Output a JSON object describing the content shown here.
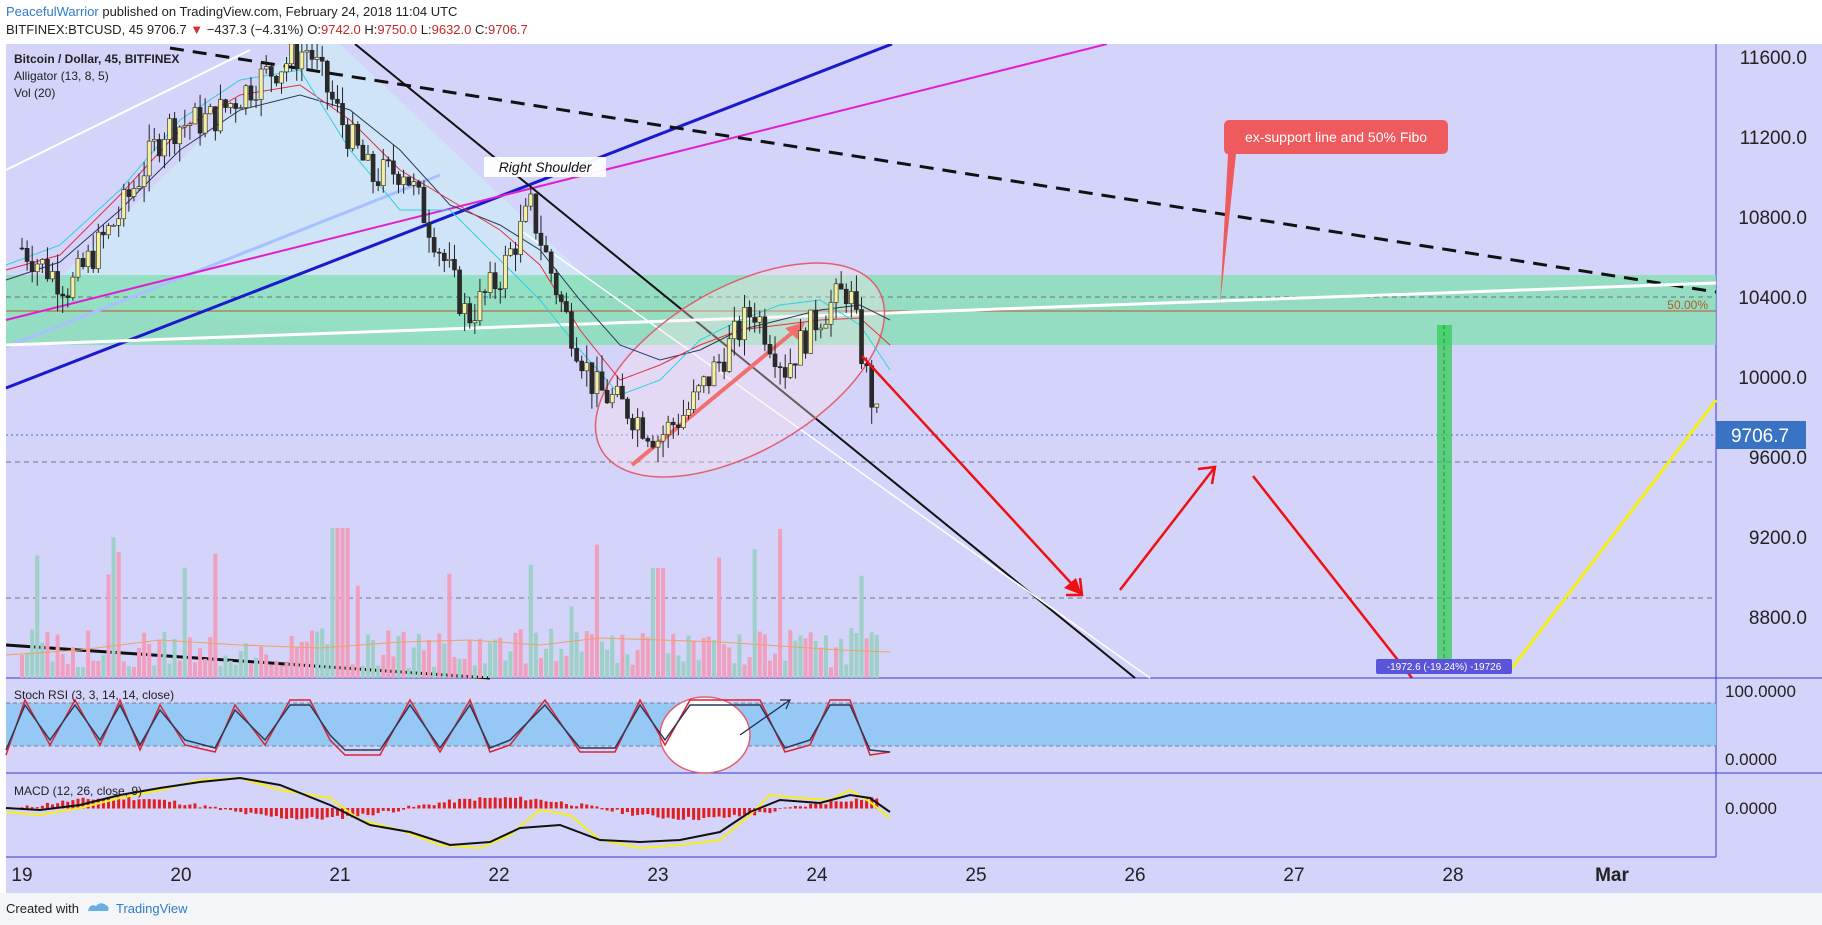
{
  "header": {
    "author": "PeacefulWarrior",
    "published": "published on TradingView.com, February 24, 2018 11:04 UTC",
    "symbol": "BITFINEX:BTCUSD, 45",
    "last": "9706.7",
    "change_arrow": "▼",
    "change": "−437.3 (−4.31%)",
    "o_label": "O:",
    "o": "9742.0",
    "h_label": "H:",
    "h": "9750.0",
    "l_label": "L:",
    "l": "9632.0",
    "c_label": "C:",
    "c": "9706.7"
  },
  "legend": {
    "title": "Bitcoin / Dollar, 45, BITFINEX",
    "alligator": "Alligator (13, 8, 5)",
    "vol": "Vol (20)"
  },
  "annotations": {
    "right_shoulder": "Right Shoulder",
    "callout": "ex-support line and 50% Fibo",
    "fib": "50.00%",
    "measure": "-1972.6 (-19.24%) -19726"
  },
  "stoch": {
    "label": "Stoch RSI (3, 3, 14, 14, close)",
    "ticks": [
      "100.0000",
      "0.0000"
    ]
  },
  "macd": {
    "label": "MACD (12, 26, close, 9)",
    "ticks": [
      "0.0000"
    ]
  },
  "footer": {
    "created": "Created with",
    "brand": "TradingView"
  },
  "colors": {
    "background": "#d4d3fa",
    "support_zone": "#7fe0b0",
    "bull": "#2a2a2a",
    "bear": "#e05570",
    "price_badge": "#3a73c4",
    "callout": "#ef5a5f"
  },
  "chart_data": {
    "type": "candlestick",
    "title": "Bitcoin / Dollar, 45, BITFINEX",
    "x": [
      "19",
      "20",
      "21",
      "22",
      "23",
      "24",
      "25",
      "26",
      "27",
      "28",
      "Mar"
    ],
    "ylim": [
      8300,
      11750
    ],
    "yticks": [
      11600,
      11200,
      10800,
      10400,
      10000,
      9600,
      9200,
      8800
    ],
    "ytick_labels": [
      "11600.0",
      "11200.0",
      "10800.0",
      "10400.0",
      "10000.0",
      "9600.0",
      "9200.0",
      "8800.0"
    ],
    "last_price": 9706.7,
    "last_price_label": "9706.7",
    "support_zone": [
      10160,
      10520
    ],
    "fib_50_level": 10330,
    "trajectory": [
      {
        "date": "24.3",
        "price": 10100
      },
      {
        "date": "25.7",
        "price": 8890
      },
      {
        "date": "26.5",
        "price": 9560
      },
      {
        "date": "28.2",
        "price": 8150
      }
    ],
    "series_close": [
      {
        "date": 19.0,
        "price": 10650
      },
      {
        "date": 19.3,
        "price": 10450
      },
      {
        "date": 19.6,
        "price": 10800
      },
      {
        "date": 19.9,
        "price": 11250
      },
      {
        "date": 20.2,
        "price": 11300
      },
      {
        "date": 20.5,
        "price": 11500
      },
      {
        "date": 20.8,
        "price": 11650
      },
      {
        "date": 21.0,
        "price": 11300
      },
      {
        "date": 21.2,
        "price": 11000
      },
      {
        "date": 21.4,
        "price": 11050
      },
      {
        "date": 21.6,
        "price": 10700
      },
      {
        "date": 21.8,
        "price": 10300
      },
      {
        "date": 22.0,
        "price": 10500
      },
      {
        "date": 22.2,
        "price": 10850
      },
      {
        "date": 22.4,
        "price": 10350
      },
      {
        "date": 22.6,
        "price": 9950
      },
      {
        "date": 22.8,
        "price": 9850
      },
      {
        "date": 23.0,
        "price": 9700
      },
      {
        "date": 23.2,
        "price": 9850
      },
      {
        "date": 23.4,
        "price": 10100
      },
      {
        "date": 23.6,
        "price": 10350
      },
      {
        "date": 23.8,
        "price": 10050
      },
      {
        "date": 24.0,
        "price": 10300
      },
      {
        "date": 24.2,
        "price": 10450
      },
      {
        "date": 24.3,
        "price": 10050
      },
      {
        "date": 24.4,
        "price": 9706.7
      }
    ]
  }
}
